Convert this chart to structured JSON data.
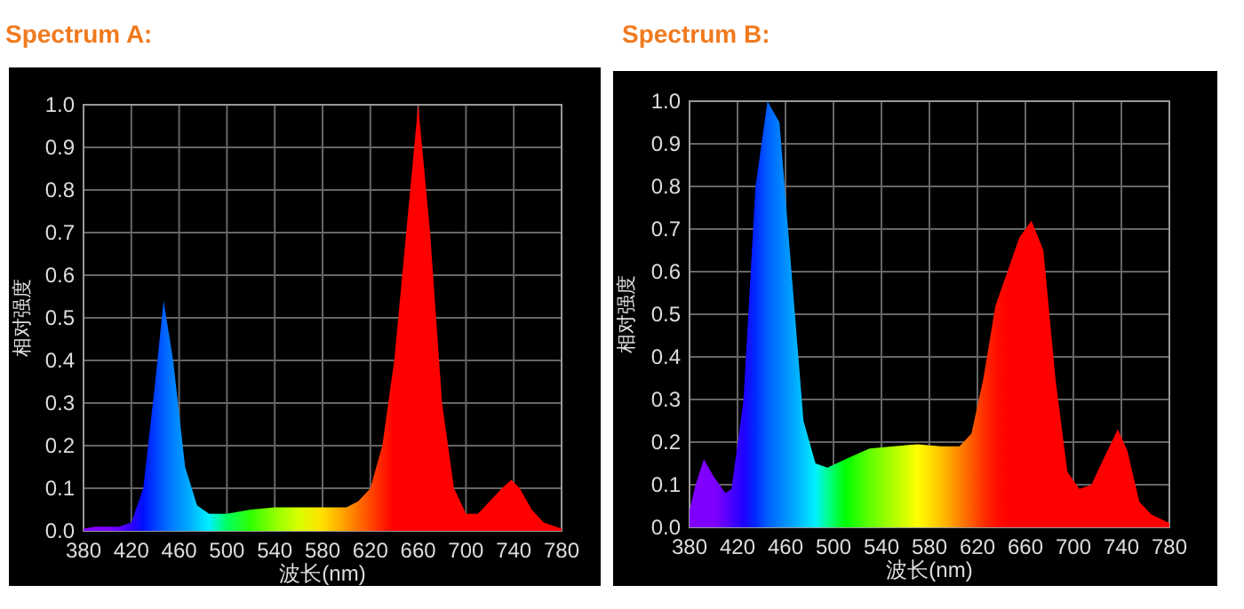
{
  "chart_data": [
    {
      "type": "area",
      "title": "Spectrum A:",
      "xlabel": "波长(nm)",
      "ylabel": "相对强度",
      "xlim": [
        380,
        780
      ],
      "xticks": [
        380,
        420,
        460,
        500,
        540,
        580,
        620,
        660,
        700,
        740,
        780
      ],
      "ylim": [
        0,
        1
      ],
      "yticks": [
        {
          "value": 0,
          "label": "0.0"
        },
        {
          "value": 0.1,
          "label": "0.1"
        },
        {
          "value": 0.2,
          "label": "0.2"
        },
        {
          "value": 0.3,
          "label": "0.3"
        },
        {
          "value": 0.4,
          "label": "0.4"
        },
        {
          "value": 0.5,
          "label": "0.5"
        },
        {
          "value": 0.6,
          "label": "0.6"
        },
        {
          "value": 0.7,
          "label": "0.7"
        },
        {
          "value": 0.8,
          "label": "0.8"
        },
        {
          "value": 0.9,
          "label": "0.9"
        },
        {
          "value": 1,
          "label": "1.0"
        }
      ],
      "grid": true,
      "series": [
        {
          "x": [
            380,
            390,
            400,
            410,
            420,
            430,
            440,
            447,
            455,
            465,
            475,
            485,
            500,
            520,
            540,
            560,
            580,
            600,
            610,
            620,
            630,
            640,
            650,
            660,
            670,
            680,
            690,
            700,
            710,
            720,
            730,
            738,
            745,
            755,
            765,
            780
          ],
          "values": [
            0.005,
            0.01,
            0.01,
            0.01,
            0.02,
            0.1,
            0.35,
            0.54,
            0.4,
            0.15,
            0.06,
            0.04,
            0.04,
            0.05,
            0.055,
            0.055,
            0.055,
            0.055,
            0.07,
            0.1,
            0.2,
            0.4,
            0.7,
            1.0,
            0.7,
            0.3,
            0.1,
            0.04,
            0.04,
            0.07,
            0.1,
            0.12,
            0.1,
            0.05,
            0.02,
            0.005
          ],
          "colors": [
            "#8000ff",
            "#8000ff",
            "#8000ff",
            "#6000ff",
            "#3000ff",
            "#0010ff",
            "#0040ff",
            "#0060ff",
            "#0080ff",
            "#00a0ff",
            "#00c8ff",
            "#00f0ff",
            "#00ff60",
            "#30ff00",
            "#90ff00",
            "#d8ff00",
            "#ffe000",
            "#ff9800",
            "#ff7000",
            "#ff4800",
            "#ff2000",
            "#ff0000",
            "#ff0000",
            "#ff0000",
            "#ff0000",
            "#ff0000",
            "#ff0000",
            "#ff0000",
            "#ff0000",
            "#ff0000",
            "#ff0000",
            "#ff0000",
            "#ff0000",
            "#ff0000",
            "#ff0000",
            "#ff0000"
          ]
        }
      ]
    },
    {
      "type": "area",
      "title": "Spectrum B:",
      "xlabel": "波长(nm)",
      "ylabel": "相对强度",
      "xlim": [
        380,
        780
      ],
      "xticks": [
        380,
        420,
        460,
        500,
        540,
        580,
        620,
        660,
        700,
        740,
        780
      ],
      "ylim": [
        0,
        1
      ],
      "yticks": [
        {
          "value": 0,
          "label": "0.0"
        },
        {
          "value": 0.1,
          "label": "0.1"
        },
        {
          "value": 0.2,
          "label": "0.2"
        },
        {
          "value": 0.3,
          "label": "0.3"
        },
        {
          "value": 0.4,
          "label": "0.4"
        },
        {
          "value": 0.5,
          "label": "0.5"
        },
        {
          "value": 0.6,
          "label": "0.6"
        },
        {
          "value": 0.7,
          "label": "0.7"
        },
        {
          "value": 0.8,
          "label": "0.8"
        },
        {
          "value": 0.9,
          "label": "0.9"
        },
        {
          "value": 1,
          "label": "1.0"
        }
      ],
      "grid": true,
      "series": [
        {
          "x": [
            380,
            385,
            392,
            400,
            410,
            415,
            425,
            435,
            445,
            455,
            465,
            475,
            485,
            495,
            510,
            530,
            550,
            570,
            590,
            605,
            615,
            625,
            635,
            645,
            655,
            665,
            675,
            685,
            695,
            705,
            715,
            725,
            737,
            745,
            755,
            765,
            780
          ],
          "values": [
            0.04,
            0.1,
            0.16,
            0.12,
            0.08,
            0.09,
            0.3,
            0.8,
            1.0,
            0.95,
            0.6,
            0.25,
            0.15,
            0.14,
            0.16,
            0.185,
            0.19,
            0.195,
            0.19,
            0.19,
            0.22,
            0.35,
            0.52,
            0.6,
            0.68,
            0.72,
            0.65,
            0.35,
            0.13,
            0.09,
            0.1,
            0.16,
            0.23,
            0.18,
            0.06,
            0.03,
            0.01
          ],
          "colors": [
            "#8000ff",
            "#8000ff",
            "#8000ff",
            "#8000ff",
            "#6000ff",
            "#4800ff",
            "#2000ff",
            "#0028ff",
            "#0060ff",
            "#0080ff",
            "#00a0ff",
            "#00c8ff",
            "#00f0ff",
            "#00ff90",
            "#00ff00",
            "#60ff00",
            "#b0ff00",
            "#ffff00",
            "#ffc000",
            "#ff8400",
            "#ff5c00",
            "#ff3000",
            "#ff1000",
            "#ff0000",
            "#ff0000",
            "#ff0000",
            "#ff0000",
            "#ff0000",
            "#ff0000",
            "#ff0000",
            "#ff0000",
            "#ff0000",
            "#ff0000",
            "#ff0000",
            "#ff0000",
            "#ff0000",
            "#ff0000"
          ]
        }
      ]
    }
  ]
}
